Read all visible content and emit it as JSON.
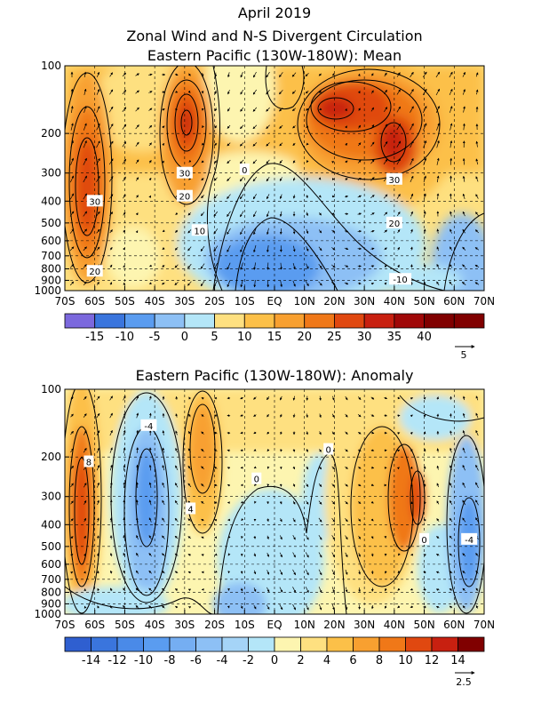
{
  "header": {
    "line1": "April 2019",
    "line2": "Zonal Wind and N-S Divergent Circulation",
    "line3": "Eastern Pacific (130W-180W): Mean"
  },
  "colors": {
    "neg": [
      "#7b68dd",
      "#3a75dd",
      "#5a9cf0",
      "#8dc0f5",
      "#b4e6f8"
    ],
    "pos": [
      "#fdf5b0",
      "#fee080",
      "#fcc048",
      "#f8a030",
      "#f07818",
      "#e04810",
      "#c82010",
      "#a00808",
      "#800000"
    ]
  },
  "chart_data": [
    {
      "type": "heatmap",
      "title": "Eastern Pacific (130W-180W): Mean",
      "x_ticks": [
        "70S",
        "60S",
        "50S",
        "40S",
        "30S",
        "20S",
        "10S",
        "EQ",
        "10N",
        "20N",
        "30N",
        "40N",
        "50N",
        "60N",
        "70N"
      ],
      "y_ticks": [
        "100",
        "200",
        "300",
        "400",
        "500",
        "600",
        "700",
        "800",
        "900",
        "1000"
      ],
      "xlim": [
        -70,
        70
      ],
      "ylim": [
        1000,
        100
      ],
      "yscale": "log",
      "colorbar": {
        "levels": [
          -15,
          -10,
          -5,
          0,
          5,
          10,
          15,
          20,
          25,
          30,
          35,
          40
        ],
        "labels": [
          "-15",
          "-10",
          "-5",
          "0",
          "5",
          "10",
          "15",
          "20",
          "25",
          "30",
          "35",
          "40"
        ]
      },
      "contour_labels": [
        {
          "text": "30",
          "x": -60,
          "p": 400
        },
        {
          "text": "20",
          "x": -60,
          "p": 820
        },
        {
          "text": "30",
          "x": -30,
          "p": 300
        },
        {
          "text": "20",
          "x": -30,
          "p": 380
        },
        {
          "text": "10",
          "x": -25,
          "p": 540
        },
        {
          "text": "0",
          "x": -10,
          "p": 290
        },
        {
          "text": "30",
          "x": 40,
          "p": 320
        },
        {
          "text": "20",
          "x": 40,
          "p": 500
        },
        {
          "text": "-10",
          "x": 42,
          "p": 890
        }
      ],
      "vector_reference": "5"
    },
    {
      "type": "heatmap",
      "title": "Eastern Pacific (130W-180W): Anomaly",
      "x_ticks": [
        "70S",
        "60S",
        "50S",
        "40S",
        "30S",
        "20S",
        "10S",
        "EQ",
        "10N",
        "20N",
        "30N",
        "40N",
        "50N",
        "60N",
        "70N"
      ],
      "y_ticks": [
        "100",
        "200",
        "300",
        "400",
        "500",
        "600",
        "700",
        "800",
        "900",
        "1000"
      ],
      "xlim": [
        -70,
        70
      ],
      "ylim": [
        1000,
        100
      ],
      "yscale": "log",
      "colorbar": {
        "levels": [
          -14,
          -12,
          -10,
          -8,
          -6,
          -4,
          -2,
          0,
          2,
          4,
          6,
          8,
          10,
          12,
          14
        ],
        "labels": [
          "-14",
          "-12",
          "-10",
          "-8",
          "-6",
          "-4",
          "-2",
          "0",
          "2",
          "4",
          "6",
          "8",
          "10",
          "12",
          "14"
        ]
      },
      "contour_labels": [
        {
          "text": "-4",
          "x": -42,
          "p": 145
        },
        {
          "text": "8",
          "x": -62,
          "p": 210
        },
        {
          "text": "0",
          "x": 18,
          "p": 185
        },
        {
          "text": "0",
          "x": -6,
          "p": 250
        },
        {
          "text": "4",
          "x": -28,
          "p": 340
        },
        {
          "text": "0",
          "x": 50,
          "p": 465
        },
        {
          "text": "-4",
          "x": 65,
          "p": 465
        }
      ],
      "vector_reference": "2.5"
    }
  ]
}
